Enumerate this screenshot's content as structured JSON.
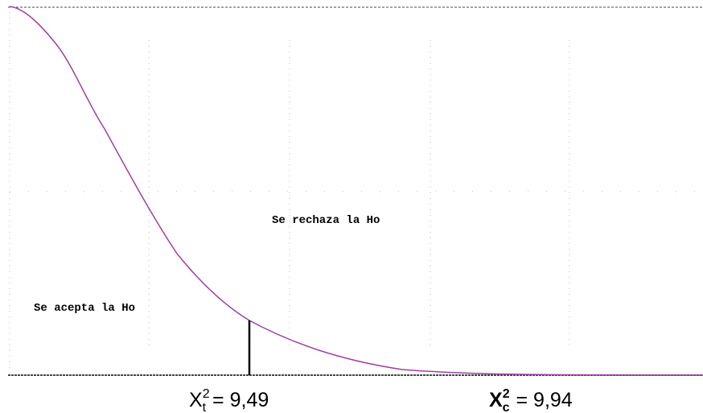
{
  "regions": {
    "reject": "Se rechaza la Ho",
    "accept": "Se acepta la Ho"
  },
  "labels": {
    "table": {
      "symbol": "X",
      "superscript": "2",
      "subscript": "t",
      "equals": "= 9,49"
    },
    "calculated": {
      "symbol": "X",
      "superscript": "2",
      "subscript": "c",
      "equals": "=  9,94"
    }
  }
}
